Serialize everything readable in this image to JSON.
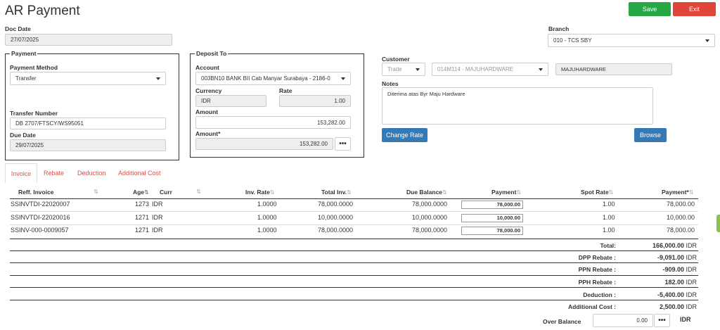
{
  "title": "AR Payment",
  "buttons": {
    "save": "Save",
    "exit": "Exit",
    "change_rate": "Change Rate",
    "browse": "Browse"
  },
  "colors": {
    "save": "#28a745",
    "exit": "#e0453a",
    "primary": "#337ab7",
    "tab_active": "#d9534f"
  },
  "doc_date": {
    "label": "Doc Date",
    "value": "27/07/2025"
  },
  "branch": {
    "label": "Branch",
    "value": "010 - TCS SBY"
  },
  "payment": {
    "legend": "Payment",
    "method_label": "Payment Method",
    "method_value": "Transfer",
    "transfer_number_label": "Transfer Number",
    "transfer_number_value": "DB 2707/FTSCY/WS95051",
    "due_date_label": "Due Date",
    "due_date_value": "29/07/2025"
  },
  "deposit": {
    "legend": "Deposit To",
    "account_label": "Account",
    "account_value": "003BN10 BANK BII Cab Manyar Surabaya - 2186-0",
    "currency_label": "Currency",
    "currency_value": "IDR",
    "rate_label": "Rate",
    "rate_value": "1.00",
    "amount_label": "Amount",
    "amount_value": "153,282.00",
    "amount2_label": "Amount*",
    "amount2_value": "153,282.00",
    "dots": "•••"
  },
  "customer": {
    "label": "Customer",
    "type_value": "Trade",
    "code_value": "014M114 - MAJUHARDWARE",
    "name_value": "MAJUHARDWARE"
  },
  "notes": {
    "label": "Notes",
    "value": "Diterima atas Byr Maju Hardware"
  },
  "tabs": [
    "Invoice",
    "Rebate",
    "Deduction",
    "Additional Cost"
  ],
  "table": {
    "headers": [
      "Reff. Invoice",
      "Age",
      "Curr",
      "Inv. Rate",
      "Total Inv.",
      "Due Balance",
      "Payment",
      "Spot Rate",
      "Payment*"
    ],
    "rows": [
      {
        "reff": "SSINVTDI-22020007",
        "age": "1273",
        "curr": "IDR",
        "inv_rate": "1.0000",
        "total": "78,000.0000",
        "due": "78,000.0000",
        "payment": "78,000.00",
        "spot": "1.00",
        "payment2": "78,000.00"
      },
      {
        "reff": "SSINVTDI-22020016",
        "age": "1271",
        "curr": "IDR",
        "inv_rate": "1.0000",
        "total": "10,000.0000",
        "due": "10,000.0000",
        "payment": "10,000.00",
        "spot": "1.00",
        "payment2": "10,000.00"
      },
      {
        "reff": "SSINV-000-0009057",
        "age": "1271",
        "curr": "IDR",
        "inv_rate": "1.0000",
        "total": "78,000.0000",
        "due": "78,000.0000",
        "payment": "78,000.00",
        "spot": "1.00",
        "payment2": "78,000.00"
      }
    ]
  },
  "summary": [
    {
      "label": "Total:",
      "value": "166,000.00",
      "cur": "IDR"
    },
    {
      "label": "DPP Rebate :",
      "value": "-9,091.00",
      "cur": "IDR"
    },
    {
      "label": "PPN Rebate :",
      "value": "-909.00",
      "cur": "IDR"
    },
    {
      "label": "PPH Rebate :",
      "value": "182.00",
      "cur": "IDR"
    },
    {
      "label": "Deduction :",
      "value": "-5,400.00",
      "cur": "IDR"
    },
    {
      "label": "Additional Cost :",
      "value": "2,500.00",
      "cur": "IDR"
    }
  ],
  "over_balance": {
    "label": "Over Balance",
    "value": "0.00",
    "cur": "IDR",
    "dots": "•••"
  }
}
